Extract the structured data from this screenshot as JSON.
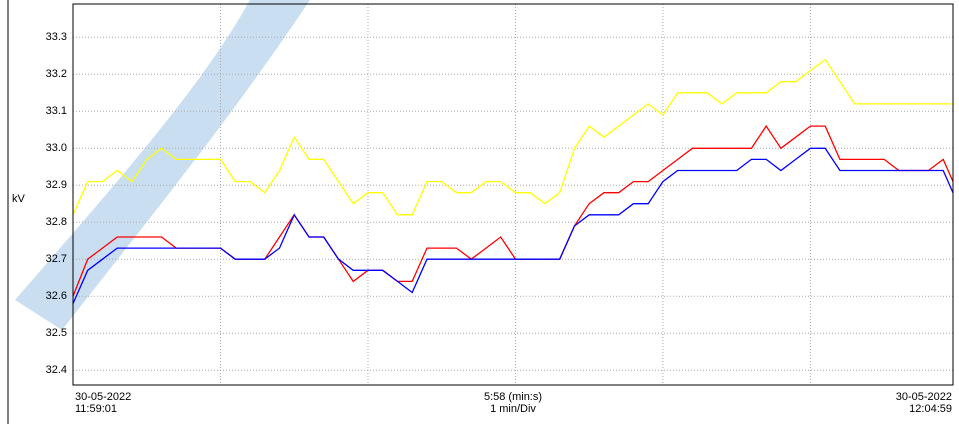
{
  "chart_data": {
    "type": "line",
    "ylabel": "kV",
    "start_date": "30-05-2022",
    "end_date": "30-05-2022",
    "span_label": "5:58 (min:s)",
    "division_label": "1 min/Div",
    "xlim": [
      "11:59:01",
      "12:04:59"
    ],
    "xticks": [
      "12:00:01",
      "12:01:01",
      "12:02:01",
      "12:03:01",
      "12:04:01"
    ],
    "ylim": [
      32.36,
      33.39
    ],
    "yticks": [
      32.4,
      32.5,
      32.6,
      32.7,
      32.8,
      32.9,
      {
        "value": 33,
        "label": "33.0"
      },
      33.1,
      33.2,
      33.3
    ],
    "grid": true,
    "x": [
      "11:59:01",
      "11:59:07",
      "11:59:13",
      "11:59:19",
      "11:59:25",
      "11:59:31",
      "11:59:37",
      "11:59:43",
      "11:59:49",
      "11:59:55",
      "12:00:01",
      "12:00:07",
      "12:00:13",
      "12:00:19",
      "12:00:25",
      "12:00:31",
      "12:00:37",
      "12:00:43",
      "12:00:49",
      "12:00:55",
      "12:01:01",
      "12:01:07",
      "12:01:13",
      "12:01:19",
      "12:01:25",
      "12:01:31",
      "12:01:37",
      "12:01:43",
      "12:01:49",
      "12:01:55",
      "12:02:01",
      "12:02:07",
      "12:02:13",
      "12:02:19",
      "12:02:25",
      "12:02:31",
      "12:02:37",
      "12:02:43",
      "12:02:49",
      "12:02:55",
      "12:03:01",
      "12:03:07",
      "12:03:13",
      "12:03:19",
      "12:03:25",
      "12:03:31",
      "12:03:37",
      "12:03:43",
      "12:03:49",
      "12:03:55",
      "12:04:01",
      "12:04:07",
      "12:04:13",
      "12:04:19",
      "12:04:25",
      "12:04:31",
      "12:04:37",
      "12:04:43",
      "12:04:49",
      "12:04:55",
      "12:04:59"
    ],
    "series": [
      {
        "color": "#ffff00",
        "values": [
          32.82,
          32.91,
          32.91,
          32.94,
          32.91,
          32.97,
          33.0,
          32.97,
          32.97,
          32.97,
          32.97,
          32.91,
          32.91,
          32.88,
          32.94,
          33.03,
          32.97,
          32.97,
          32.91,
          32.85,
          32.88,
          32.88,
          32.82,
          32.82,
          32.91,
          32.91,
          32.88,
          32.88,
          32.91,
          32.91,
          32.88,
          32.88,
          32.85,
          32.88,
          33.0,
          33.06,
          33.03,
          33.06,
          33.09,
          33.12,
          33.09,
          33.15,
          33.15,
          33.15,
          33.12,
          33.15,
          33.15,
          33.15,
          33.18,
          33.18,
          33.21,
          33.24,
          33.18,
          33.12,
          33.12,
          33.12,
          33.12,
          33.12,
          33.12,
          33.12,
          33.12
        ]
      },
      {
        "color": "#ff0000",
        "values": [
          32.6,
          32.7,
          32.73,
          32.76,
          32.76,
          32.76,
          32.76,
          32.73,
          32.73,
          32.73,
          32.73,
          32.7,
          32.7,
          32.7,
          32.76,
          32.82,
          32.76,
          32.76,
          32.7,
          32.64,
          32.67,
          32.67,
          32.64,
          32.64,
          32.73,
          32.73,
          32.73,
          32.7,
          32.73,
          32.76,
          32.7,
          32.7,
          32.7,
          32.7,
          32.79,
          32.85,
          32.88,
          32.88,
          32.91,
          32.91,
          32.94,
          32.97,
          33.0,
          33.0,
          33.0,
          33.0,
          33.0,
          33.06,
          33.0,
          33.03,
          33.06,
          33.06,
          32.97,
          32.97,
          32.97,
          32.97,
          32.94,
          32.94,
          32.94,
          32.97,
          32.91
        ]
      },
      {
        "color": "#0000ff",
        "values": [
          32.58,
          32.67,
          32.7,
          32.73,
          32.73,
          32.73,
          32.73,
          32.73,
          32.73,
          32.73,
          32.73,
          32.7,
          32.7,
          32.7,
          32.73,
          32.82,
          32.76,
          32.76,
          32.7,
          32.67,
          32.67,
          32.67,
          32.64,
          32.61,
          32.7,
          32.7,
          32.7,
          32.7,
          32.7,
          32.7,
          32.7,
          32.7,
          32.7,
          32.7,
          32.79,
          32.82,
          32.82,
          32.82,
          32.85,
          32.85,
          32.91,
          32.94,
          32.94,
          32.94,
          32.94,
          32.94,
          32.97,
          32.97,
          32.94,
          32.97,
          33.0,
          33.0,
          32.94,
          32.94,
          32.94,
          32.94,
          32.94,
          32.94,
          32.94,
          32.94,
          32.88
        ]
      }
    ]
  }
}
